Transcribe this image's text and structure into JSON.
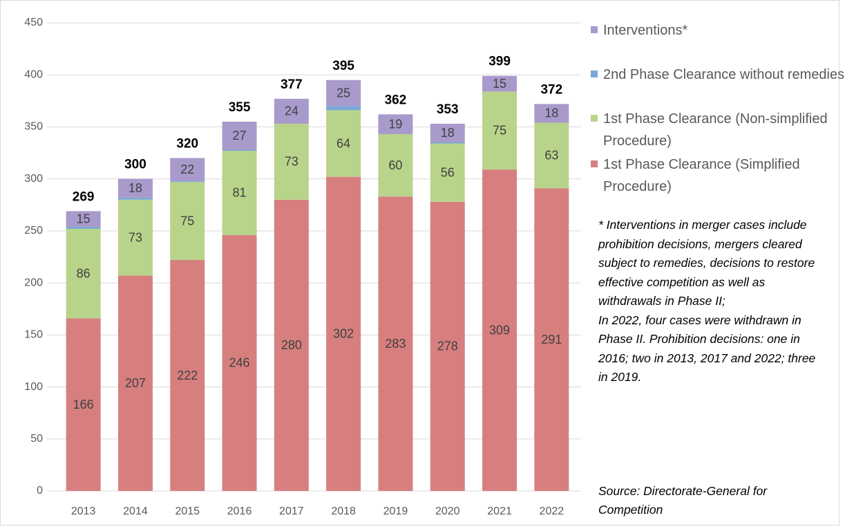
{
  "chart_data": {
    "type": "stacked_bar",
    "categories": [
      "2013",
      "2014",
      "2015",
      "2016",
      "2017",
      "2018",
      "2019",
      "2020",
      "2021",
      "2022"
    ],
    "series": [
      {
        "name": "1st Phase Clearance (Simplified Procedure)",
        "color": "#d77f7f",
        "labels": true,
        "values": [
          166,
          207,
          222,
          246,
          280,
          302,
          283,
          278,
          309,
          291
        ]
      },
      {
        "name": "1st Phase Clearance (Non-simplified Procedure)",
        "color": "#b8d48b",
        "labels": true,
        "values": [
          86,
          73,
          75,
          81,
          73,
          64,
          60,
          56,
          75,
          63
        ]
      },
      {
        "name": "2nd Phase Clearance without remedies",
        "color": "#7ba7d6",
        "labels": false,
        "values": [
          2,
          2,
          1,
          1,
          0,
          4,
          0,
          1,
          0,
          0
        ]
      },
      {
        "name": "Interventions*",
        "color": "#a99acc",
        "labels": true,
        "values": [
          15,
          18,
          22,
          27,
          24,
          25,
          19,
          18,
          15,
          18
        ]
      }
    ],
    "totals": [
      269,
      300,
      320,
      355,
      377,
      395,
      362,
      353,
      399,
      372
    ],
    "ylim": [
      0,
      450
    ],
    "yticks": [
      0,
      50,
      100,
      150,
      200,
      250,
      300,
      350,
      400,
      450
    ],
    "grid": true,
    "note": "* Interventions in merger cases include prohibition decisions, mergers cleared subject to remedies, decisions to restore effective competition as well as withdrawals in Phase II;\nIn 2022, four cases were withdrawn in Phase II. Prohibition decisions: one in 2016; two in 2013, 2017 and 2022; three in 2019.",
    "source": "Source: Directorate-General for Competition"
  }
}
